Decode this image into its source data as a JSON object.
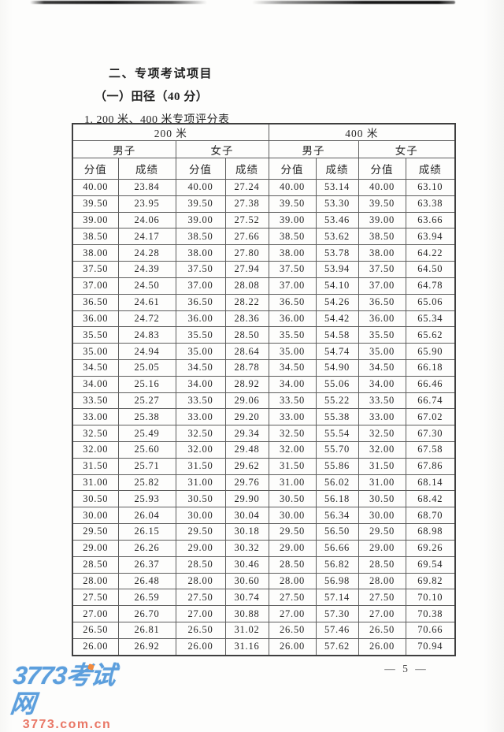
{
  "document": {
    "section_title": "二、专项考试项目",
    "subsection_title": "（一）田径（40 分）",
    "table_caption": "1. 200 米、400 米专项评分表",
    "page_number": "— 5 —"
  },
  "watermark": {
    "site_name": "3773考试网",
    "site_domain": "3773.com.cn",
    "brand_blue": "#5c9fdd",
    "brand_red": "#e97766",
    "accent_orange": "#f28a3d"
  },
  "table": {
    "event_headers": [
      "200 米",
      "400 米"
    ],
    "gender_headers": [
      "男子",
      "女子",
      "男子",
      "女子"
    ],
    "column_headers": [
      "分值",
      "成绩",
      "分值",
      "成绩",
      "分值",
      "成绩",
      "分值",
      "成绩"
    ],
    "rows": [
      [
        "40.00",
        "23.84",
        "40.00",
        "27.24",
        "40.00",
        "53.14",
        "40.00",
        "63.10"
      ],
      [
        "39.50",
        "23.95",
        "39.50",
        "27.38",
        "39.50",
        "53.30",
        "39.50",
        "63.38"
      ],
      [
        "39.00",
        "24.06",
        "39.00",
        "27.52",
        "39.00",
        "53.46",
        "39.00",
        "63.66"
      ],
      [
        "38.50",
        "24.17",
        "38.50",
        "27.66",
        "38.50",
        "53.62",
        "38.50",
        "63.94"
      ],
      [
        "38.00",
        "24.28",
        "38.00",
        "27.80",
        "38.00",
        "53.78",
        "38.00",
        "64.22"
      ],
      [
        "37.50",
        "24.39",
        "37.50",
        "27.94",
        "37.50",
        "53.94",
        "37.50",
        "64.50"
      ],
      [
        "37.00",
        "24.50",
        "37.00",
        "28.08",
        "37.00",
        "54.10",
        "37.00",
        "64.78"
      ],
      [
        "36.50",
        "24.61",
        "36.50",
        "28.22",
        "36.50",
        "54.26",
        "36.50",
        "65.06"
      ],
      [
        "36.00",
        "24.72",
        "36.00",
        "28.36",
        "36.00",
        "54.42",
        "36.00",
        "65.34"
      ],
      [
        "35.50",
        "24.83",
        "35.50",
        "28.50",
        "35.50",
        "54.58",
        "35.50",
        "65.62"
      ],
      [
        "35.00",
        "24.94",
        "35.00",
        "28.64",
        "35.00",
        "54.74",
        "35.00",
        "65.90"
      ],
      [
        "34.50",
        "25.05",
        "34.50",
        "28.78",
        "34.50",
        "54.90",
        "34.50",
        "66.18"
      ],
      [
        "34.00",
        "25.16",
        "34.00",
        "28.92",
        "34.00",
        "55.06",
        "34.00",
        "66.46"
      ],
      [
        "33.50",
        "25.27",
        "33.50",
        "29.06",
        "33.50",
        "55.22",
        "33.50",
        "66.74"
      ],
      [
        "33.00",
        "25.38",
        "33.00",
        "29.20",
        "33.00",
        "55.38",
        "33.00",
        "67.02"
      ],
      [
        "32.50",
        "25.49",
        "32.50",
        "29.34",
        "32.50",
        "55.54",
        "32.50",
        "67.30"
      ],
      [
        "32.00",
        "25.60",
        "32.00",
        "29.48",
        "32.00",
        "55.70",
        "32.00",
        "67.58"
      ],
      [
        "31.50",
        "25.71",
        "31.50",
        "29.62",
        "31.50",
        "55.86",
        "31.50",
        "67.86"
      ],
      [
        "31.00",
        "25.82",
        "31.00",
        "29.76",
        "31.00",
        "56.02",
        "31.00",
        "68.14"
      ],
      [
        "30.50",
        "25.93",
        "30.50",
        "29.90",
        "30.50",
        "56.18",
        "30.50",
        "68.42"
      ],
      [
        "30.00",
        "26.04",
        "30.00",
        "30.04",
        "30.00",
        "56.34",
        "30.00",
        "68.70"
      ],
      [
        "29.50",
        "26.15",
        "29.50",
        "30.18",
        "29.50",
        "56.50",
        "29.50",
        "68.98"
      ],
      [
        "29.00",
        "26.26",
        "29.00",
        "30.32",
        "29.00",
        "56.66",
        "29.00",
        "69.26"
      ],
      [
        "28.50",
        "26.37",
        "28.50",
        "30.46",
        "28.50",
        "56.82",
        "28.50",
        "69.54"
      ],
      [
        "28.00",
        "26.48",
        "28.00",
        "30.60",
        "28.00",
        "56.98",
        "28.00",
        "69.82"
      ],
      [
        "27.50",
        "26.59",
        "27.50",
        "30.74",
        "27.50",
        "57.14",
        "27.50",
        "70.10"
      ],
      [
        "27.00",
        "26.70",
        "27.00",
        "30.88",
        "27.00",
        "57.30",
        "27.00",
        "70.38"
      ],
      [
        "26.50",
        "26.81",
        "26.50",
        "31.02",
        "26.50",
        "57.46",
        "26.50",
        "70.66"
      ],
      [
        "26.00",
        "26.92",
        "26.00",
        "31.16",
        "26.00",
        "57.62",
        "26.00",
        "70.94"
      ]
    ]
  }
}
